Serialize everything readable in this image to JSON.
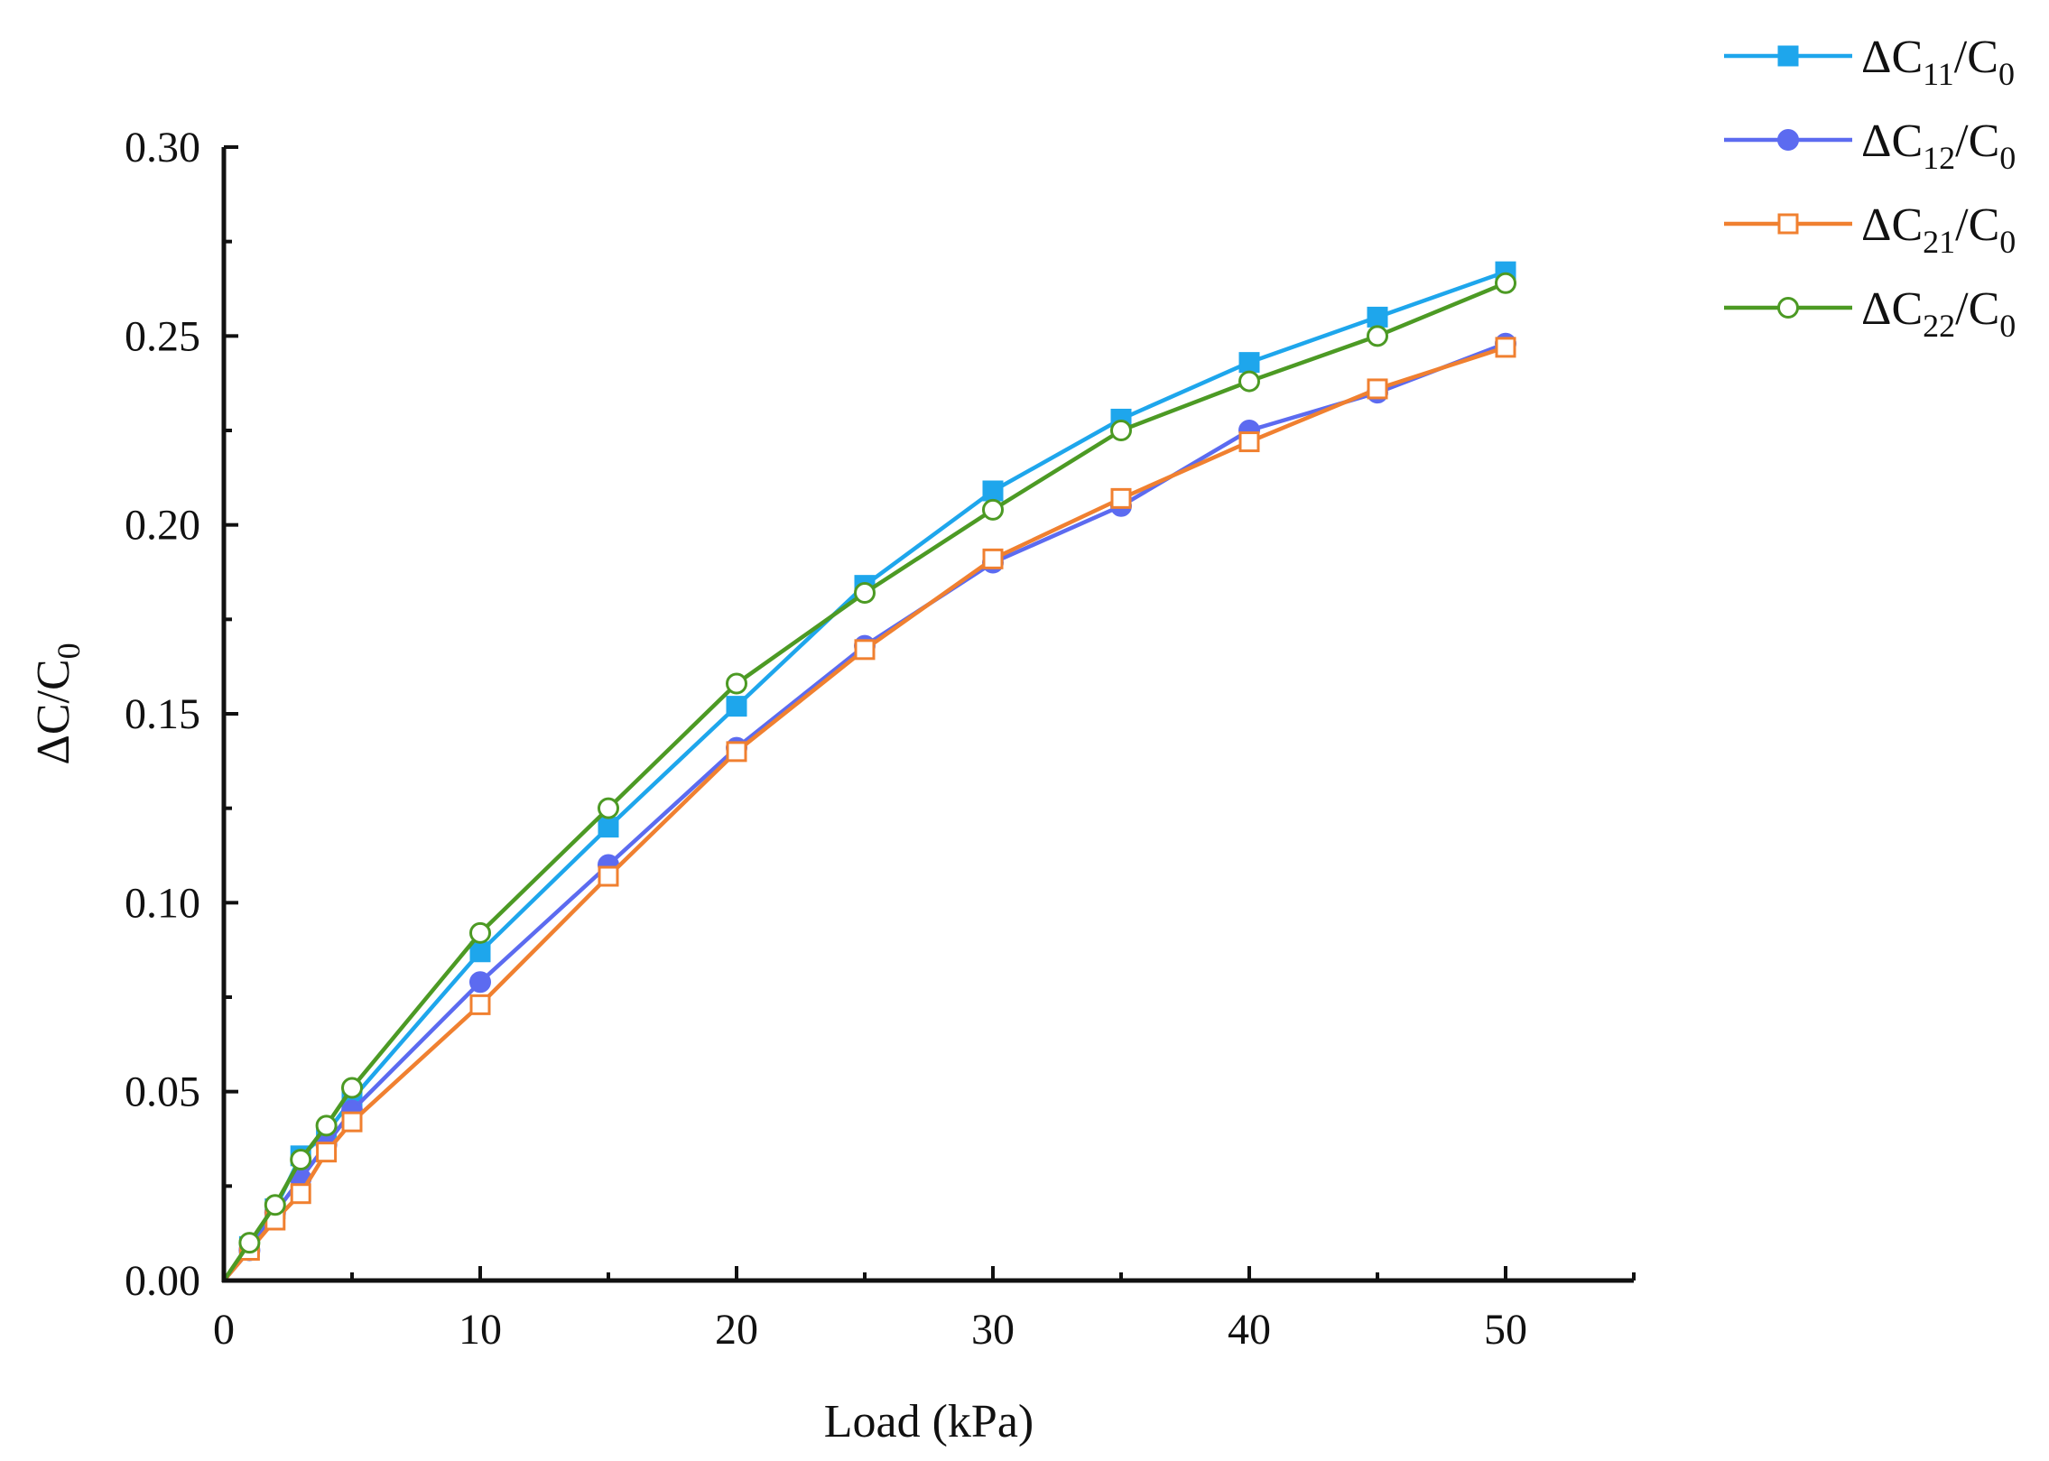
{
  "chart_data": {
    "type": "line",
    "title": "",
    "xlabel": "Load (kPa)",
    "ylabel": {
      "main": "ΔC/C",
      "sub": "0"
    },
    "xlim": [
      0,
      55
    ],
    "ylim": [
      0,
      0.3
    ],
    "xticks": [
      0,
      10,
      20,
      30,
      40,
      50
    ],
    "xtick_labels": [
      "0",
      "10",
      "20",
      "30",
      "40",
      "50"
    ],
    "yticks": [
      0,
      0.05,
      0.1,
      0.15,
      0.2,
      0.25,
      0.3
    ],
    "ytick_labels": [
      "0.00",
      "0.05",
      "0.10",
      "0.15",
      "0.20",
      "0.25",
      "0.30"
    ],
    "grid": false,
    "legend_position": "top-right",
    "x": [
      0,
      1,
      2,
      3,
      4,
      5,
      10,
      15,
      20,
      25,
      30,
      35,
      40,
      45,
      50
    ],
    "series": [
      {
        "name": "ΔC11/C0",
        "label": {
          "a": "ΔC",
          "a_sub": "11",
          "b": "/C",
          "b_sub": "0"
        },
        "color": "#1ea6ec",
        "marker": "filled-square",
        "values": [
          0,
          0.009,
          0.019,
          0.033,
          0.039,
          0.048,
          0.087,
          0.12,
          0.152,
          0.184,
          0.209,
          0.228,
          0.243,
          0.255,
          0.267
        ]
      },
      {
        "name": "ΔC12/C0",
        "label": {
          "a": "ΔC",
          "a_sub": "12",
          "b": "/C",
          "b_sub": "0"
        },
        "color": "#5c6bf0",
        "marker": "filled-circle",
        "values": [
          0,
          0.008,
          0.018,
          0.027,
          0.036,
          0.045,
          0.079,
          0.11,
          0.141,
          0.168,
          0.19,
          0.205,
          0.225,
          0.235,
          0.248
        ]
      },
      {
        "name": "ΔC21/C0",
        "label": {
          "a": "ΔC",
          "a_sub": "21",
          "b": "/C",
          "b_sub": "0"
        },
        "color": "#f08030",
        "marker": "open-square",
        "values": [
          0,
          0.008,
          0.016,
          0.023,
          0.034,
          0.042,
          0.073,
          0.107,
          0.14,
          0.167,
          0.191,
          0.207,
          0.222,
          0.236,
          0.247
        ]
      },
      {
        "name": "ΔC22/C0",
        "label": {
          "a": "ΔC",
          "a_sub": "22",
          "b": "/C",
          "b_sub": "0"
        },
        "color": "#4c9a24",
        "marker": "open-circle",
        "values": [
          0,
          0.01,
          0.02,
          0.032,
          0.041,
          0.051,
          0.092,
          0.125,
          0.158,
          0.182,
          0.204,
          0.225,
          0.238,
          0.25,
          0.264
        ]
      }
    ]
  }
}
